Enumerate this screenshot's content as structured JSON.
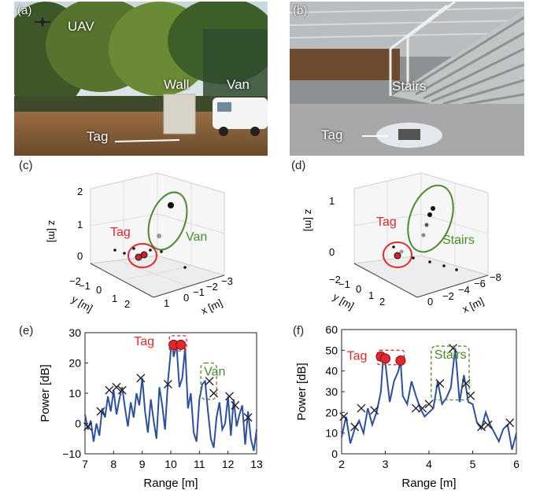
{
  "panels": {
    "a": {
      "label": "(a)",
      "annotations": {
        "uav": "UAV",
        "wall": "Wall",
        "van": "Van",
        "tag": "Tag"
      }
    },
    "b": {
      "label": "(b)",
      "annotations": {
        "stairs": "Stairs",
        "tag": "Tag"
      }
    },
    "c": {
      "label": "(c)",
      "zlabel": "z [m]",
      "ylabel": "y [m]",
      "xlabel": "x [m]",
      "z_ticks": [
        "0",
        "1",
        "2"
      ],
      "y_ticks": [
        "−2",
        "−1",
        "0",
        "1",
        "2"
      ],
      "x_ticks": [
        "1",
        "0",
        "−1",
        "−2",
        "−3"
      ],
      "tag_label": "Tag",
      "object_label": "Van"
    },
    "d": {
      "label": "(d)",
      "zlabel": "z [m]",
      "ylabel": "y [m]",
      "xlabel": "x [m]",
      "z_ticks": [
        "0",
        "1"
      ],
      "y_ticks": [
        "−2",
        "−1",
        "0",
        "1",
        "2"
      ],
      "x_ticks": [
        "0",
        "−2",
        "−4",
        "−6",
        "−8"
      ],
      "tag_label": "Tag",
      "object_label": "Stairs"
    }
  },
  "chart_data": [
    {
      "panel": "(e)",
      "type": "line",
      "xlabel": "Range [m]",
      "ylabel": "Power [dB]",
      "xlim": [
        7,
        13
      ],
      "ylim": [
        -10,
        30
      ],
      "x_ticks": [
        7,
        8,
        9,
        10,
        11,
        12,
        13
      ],
      "y_ticks": [
        -10,
        0,
        10,
        20,
        30
      ],
      "series_x": [
        7.0,
        7.1,
        7.2,
        7.3,
        7.4,
        7.5,
        7.6,
        7.7,
        7.8,
        7.9,
        8.0,
        8.1,
        8.2,
        8.3,
        8.4,
        8.5,
        8.6,
        8.7,
        8.8,
        8.9,
        9.0,
        9.1,
        9.2,
        9.3,
        9.4,
        9.5,
        9.6,
        9.7,
        9.8,
        9.9,
        10.0,
        10.05,
        10.1,
        10.2,
        10.3,
        10.4,
        10.5,
        10.6,
        10.7,
        10.8,
        10.9,
        11.0,
        11.1,
        11.2,
        11.3,
        11.4,
        11.5,
        11.6,
        11.7,
        11.8,
        11.9,
        12.0,
        12.1,
        12.2,
        12.3,
        12.4,
        12.5,
        12.6,
        12.7,
        12.8,
        12.9,
        13.0
      ],
      "series_y": [
        3,
        -2,
        1,
        -6,
        0,
        -4,
        5,
        2,
        9,
        4,
        11,
        3,
        8,
        12,
        5,
        -1,
        7,
        2,
        10,
        6,
        15,
        4,
        -3,
        8,
        1,
        -5,
        12,
        6,
        -2,
        14,
        24,
        27,
        22,
        26,
        12,
        15,
        25,
        5,
        10,
        -3,
        -6,
        8,
        13,
        14,
        4,
        -5,
        -8,
        2,
        7,
        -2,
        0,
        9,
        -4,
        8,
        -1,
        3,
        6,
        -7,
        4,
        -5,
        -9,
        -2
      ],
      "cross_markers": [
        {
          "x": 7.1,
          "y": -1
        },
        {
          "x": 7.55,
          "y": 4
        },
        {
          "x": 7.85,
          "y": 11
        },
        {
          "x": 8.1,
          "y": 12
        },
        {
          "x": 8.3,
          "y": 11
        },
        {
          "x": 8.95,
          "y": 15
        },
        {
          "x": 9.9,
          "y": 13
        },
        {
          "x": 11.35,
          "y": 14
        },
        {
          "x": 11.5,
          "y": 10
        },
        {
          "x": 12.05,
          "y": 9
        },
        {
          "x": 12.25,
          "y": 6
        },
        {
          "x": 12.7,
          "y": 2
        }
      ],
      "peak_markers": [
        {
          "x": 10.1,
          "y": 26
        },
        {
          "x": 10.35,
          "y": 26
        }
      ],
      "tag_label": "Tag",
      "object_label": "Van",
      "tag_box": {
        "x0": 9.95,
        "x1": 10.55,
        "y0": 24,
        "y1": 29
      },
      "object_box": {
        "x0": 11.05,
        "x1": 11.6,
        "y0": 8,
        "y1": 20
      }
    },
    {
      "panel": "(f)",
      "type": "line",
      "xlabel": "Range [m]",
      "ylabel": "Power [dB]",
      "xlim": [
        2,
        6
      ],
      "ylim": [
        0,
        60
      ],
      "x_ticks": [
        2,
        3,
        4,
        5,
        6
      ],
      "y_ticks": [
        0,
        10,
        20,
        30,
        40,
        50,
        60
      ],
      "series_x": [
        2.0,
        2.1,
        2.2,
        2.3,
        2.4,
        2.5,
        2.6,
        2.7,
        2.8,
        2.9,
        2.95,
        3.0,
        3.1,
        3.2,
        3.3,
        3.35,
        3.4,
        3.5,
        3.6,
        3.7,
        3.8,
        3.9,
        4.0,
        4.1,
        4.2,
        4.3,
        4.4,
        4.5,
        4.6,
        4.7,
        4.8,
        4.9,
        5.0,
        5.1,
        5.2,
        5.3,
        5.4,
        5.5,
        5.6,
        5.7,
        5.8,
        5.9,
        6.0
      ],
      "series_y": [
        8,
        18,
        5,
        12,
        16,
        10,
        22,
        14,
        20,
        30,
        46,
        44,
        25,
        35,
        40,
        45,
        28,
        24,
        35,
        28,
        22,
        18,
        20,
        22,
        35,
        24,
        27,
        32,
        51,
        25,
        38,
        25,
        24,
        15,
        12,
        20,
        14,
        10,
        6,
        12,
        14,
        2,
        10
      ],
      "cross_markers": [
        {
          "x": 2.05,
          "y": 18
        },
        {
          "x": 2.3,
          "y": 13
        },
        {
          "x": 2.45,
          "y": 22
        },
        {
          "x": 2.75,
          "y": 21
        },
        {
          "x": 3.7,
          "y": 22
        },
        {
          "x": 3.85,
          "y": 22
        },
        {
          "x": 4.0,
          "y": 24
        },
        {
          "x": 4.25,
          "y": 34
        },
        {
          "x": 4.55,
          "y": 51
        },
        {
          "x": 4.85,
          "y": 34
        },
        {
          "x": 4.95,
          "y": 28
        },
        {
          "x": 5.2,
          "y": 13
        },
        {
          "x": 5.35,
          "y": 14
        },
        {
          "x": 5.85,
          "y": 15
        }
      ],
      "peak_markers": [
        {
          "x": 2.9,
          "y": 47
        },
        {
          "x": 3.0,
          "y": 46
        },
        {
          "x": 3.35,
          "y": 45
        }
      ],
      "tag_label": "Tag",
      "object_label": "Stairs",
      "tag_box": {
        "x0": 2.82,
        "x1": 3.43,
        "y0": 43,
        "y1": 50
      },
      "object_box": {
        "x0": 4.05,
        "x1": 4.92,
        "y0": 26,
        "y1": 52
      }
    }
  ]
}
